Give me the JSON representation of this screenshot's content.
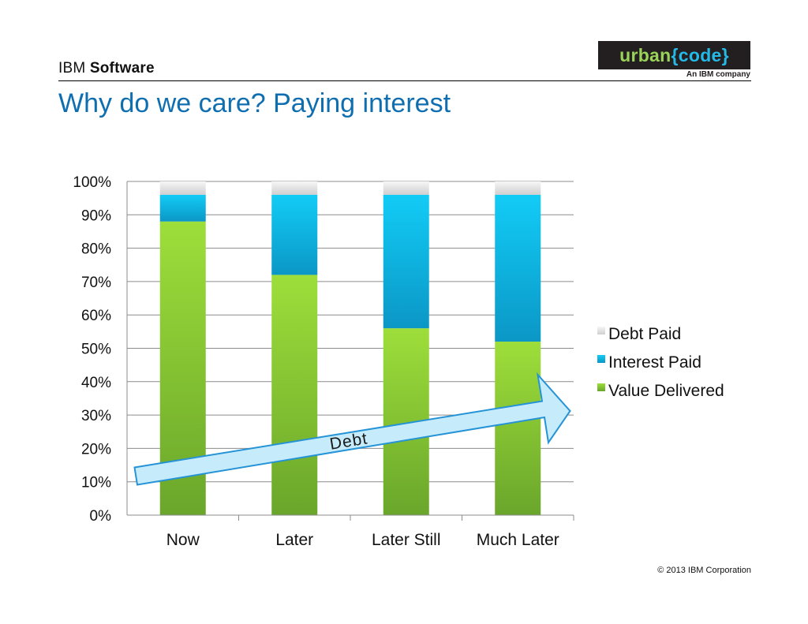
{
  "header": {
    "brand_light": "IBM",
    "brand_bold": "Software",
    "logo_word": "urban",
    "logo_brace_open": "{",
    "logo_brace_word": "code",
    "logo_brace_close": "}",
    "logo_tagline": "An IBM company"
  },
  "slide": {
    "title": "Why do we care? Paying interest"
  },
  "footer": {
    "copyright": "© 2013 IBM Corporation"
  },
  "annotation": {
    "arrow_label": "Debt"
  },
  "colors": {
    "value_delivered": "#8cc63f",
    "interest_paid": "#1ab7e6",
    "debt_paid": "#e6e6e6",
    "title_blue": "#0f6eb0",
    "arrow_fill": "#c6ecfb",
    "arrow_stroke": "#2593d6"
  },
  "chart_data": {
    "type": "bar",
    "stacked": true,
    "percent": true,
    "categories": [
      "Now",
      "Later",
      "Later Still",
      "Much Later"
    ],
    "series": [
      {
        "name": "Value Delivered",
        "values": [
          88,
          72,
          56,
          52
        ],
        "color": "#8cc63f"
      },
      {
        "name": "Interest Paid",
        "values": [
          8,
          24,
          40,
          44
        ],
        "color": "#1ab7e6"
      },
      {
        "name": "Debt Paid",
        "values": [
          4,
          4,
          4,
          4
        ],
        "color": "#e6e6e6"
      }
    ],
    "yticks": [
      "0%",
      "10%",
      "20%",
      "30%",
      "40%",
      "50%",
      "60%",
      "70%",
      "80%",
      "90%",
      "100%"
    ],
    "ylim": [
      0,
      100
    ],
    "grid": true,
    "legend": "right",
    "legend_order": [
      "Debt Paid",
      "Interest Paid",
      "Value Delivered"
    ]
  }
}
